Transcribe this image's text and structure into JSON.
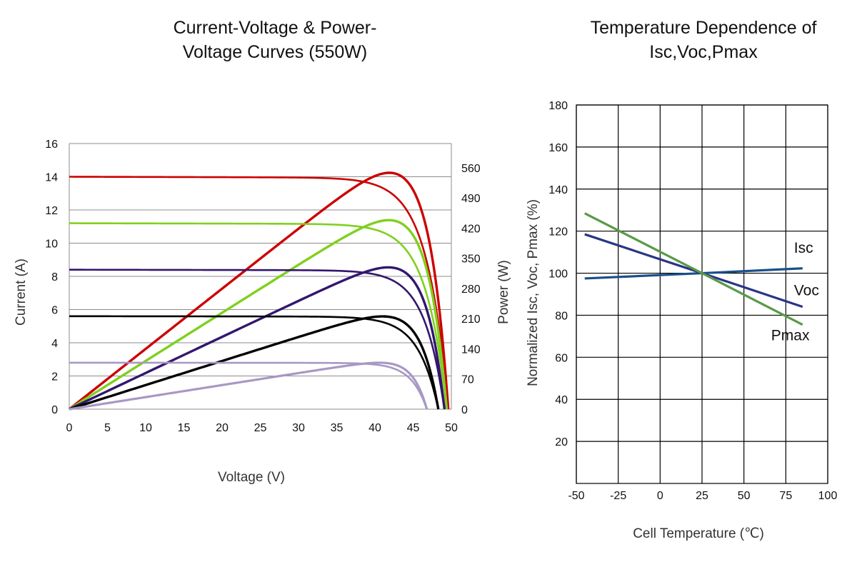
{
  "chart_data": [
    {
      "type": "line",
      "title_line1": "Current-Voltage & Power-",
      "title_line2": "Voltage Curves (550W)",
      "xlabel": "Voltage (V)",
      "ylabel": "Current (A)",
      "y2label": "Power (W)",
      "xlim": [
        0,
        50
      ],
      "ylim": [
        0,
        16
      ],
      "y2lim": [
        0,
        616
      ],
      "x_ticks": [
        0,
        5,
        10,
        15,
        20,
        25,
        30,
        35,
        40,
        45,
        50
      ],
      "y_ticks": [
        0,
        2,
        4,
        6,
        8,
        10,
        12,
        14,
        16
      ],
      "y2_ticks": [
        0,
        70,
        140,
        210,
        280,
        350,
        420,
        490,
        560
      ],
      "grid": "horizontal",
      "series": [
        {
          "color": "#cc0000",
          "isc": 14.0,
          "voc": 49.6,
          "pmax": 550,
          "vmp": 41.5
        },
        {
          "color": "#7fd01e",
          "isc": 11.2,
          "voc": 49.4,
          "pmax": 440,
          "vmp": 41.6
        },
        {
          "color": "#33166e",
          "isc": 8.4,
          "voc": 49.1,
          "pmax": 330,
          "vmp": 41.4
        },
        {
          "color": "#000000",
          "isc": 5.6,
          "voc": 48.3,
          "pmax": 216,
          "vmp": 41.2
        },
        {
          "color": "#a898c4",
          "isc": 2.8,
          "voc": 46.8,
          "pmax": 108,
          "vmp": 41.0
        }
      ]
    },
    {
      "type": "line",
      "title_line1": "Temperature Dependence of",
      "title_line2": "Isc,Voc,Pmax",
      "xlabel": "Cell Temperature (℃)",
      "ylabel": "Normalized Isc, Voc, Pmax (%)",
      "xlim": [
        -50,
        100
      ],
      "ylim": [
        0,
        180
      ],
      "x_ticks": [
        -50,
        -25,
        0,
        25,
        50,
        75,
        100
      ],
      "y_ticks": [
        20,
        40,
        60,
        80,
        100,
        120,
        140,
        160,
        180
      ],
      "grid": "both",
      "series": [
        {
          "name": "Isc",
          "color": "#1a4f8a",
          "x": [
            -45,
            25,
            85
          ],
          "y": [
            97.5,
            100,
            102.3
          ]
        },
        {
          "name": "Voc",
          "color": "#2a3585",
          "x": [
            -45,
            25,
            85
          ],
          "y": [
            118.5,
            100,
            84
          ]
        },
        {
          "name": "Pmax",
          "color": "#5a9a48",
          "x": [
            -45,
            25,
            85
          ],
          "y": [
            128.5,
            100,
            75.5
          ]
        }
      ]
    }
  ]
}
